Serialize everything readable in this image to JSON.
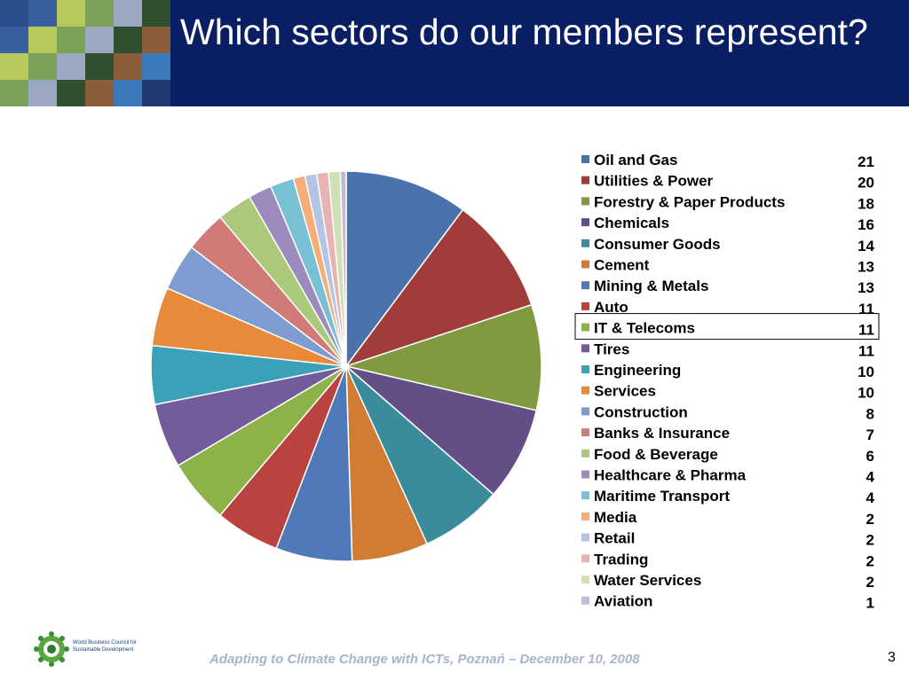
{
  "slide": {
    "title": "Which sectors do our members represent?",
    "footer": "Adapting to Climate Change with ICTs, Poznań – December 10, 2008",
    "page_number": "3",
    "logo_text": "World Business Council for Sustainable Development"
  },
  "chart_data": {
    "type": "pie",
    "title": "",
    "legend_position": "right",
    "highlighted": "IT & Telecoms",
    "slices": [
      {
        "label": "Oil and Gas",
        "value": 21,
        "color": "#4a72ac"
      },
      {
        "label": "Utilities & Power",
        "value": 20,
        "color": "#a03c3a"
      },
      {
        "label": "Forestry & Paper Products",
        "value": 18,
        "color": "#7f9a3f"
      },
      {
        "label": "Chemicals",
        "value": 16,
        "color": "#634e86"
      },
      {
        "label": "Consumer Goods",
        "value": 14,
        "color": "#3a8c9c"
      },
      {
        "label": "Cement",
        "value": 13,
        "color": "#d07c34"
      },
      {
        "label": "Mining & Metals",
        "value": 13,
        "color": "#4f79b8"
      },
      {
        "label": "Auto",
        "value": 11,
        "color": "#b9433f"
      },
      {
        "label": "IT & Telecoms",
        "value": 11,
        "color": "#8eb24a"
      },
      {
        "label": "Tires",
        "value": 11,
        "color": "#725c9b"
      },
      {
        "label": "Engineering",
        "value": 10,
        "color": "#3ba1b8"
      },
      {
        "label": "Services",
        "value": 10,
        "color": "#e98a3a"
      },
      {
        "label": "Construction",
        "value": 8,
        "color": "#7e9ccf"
      },
      {
        "label": "Banks & Insurance",
        "value": 7,
        "color": "#d07b78"
      },
      {
        "label": "Food & Beverage",
        "value": 6,
        "color": "#abc97a"
      },
      {
        "label": "Healthcare & Pharma",
        "value": 4,
        "color": "#9c8bbc"
      },
      {
        "label": "Maritime Transport",
        "value": 4,
        "color": "#78c0d3"
      },
      {
        "label": "Media",
        "value": 2,
        "color": "#f5ad79"
      },
      {
        "label": "Retail",
        "value": 2,
        "color": "#b3c4e4"
      },
      {
        "label": "Trading",
        "value": 2,
        "color": "#e8b4b2"
      },
      {
        "label": "Water Services",
        "value": 2,
        "color": "#cfe0b4"
      },
      {
        "label": "Aviation",
        "value": 1,
        "color": "#c3bad6"
      }
    ]
  }
}
